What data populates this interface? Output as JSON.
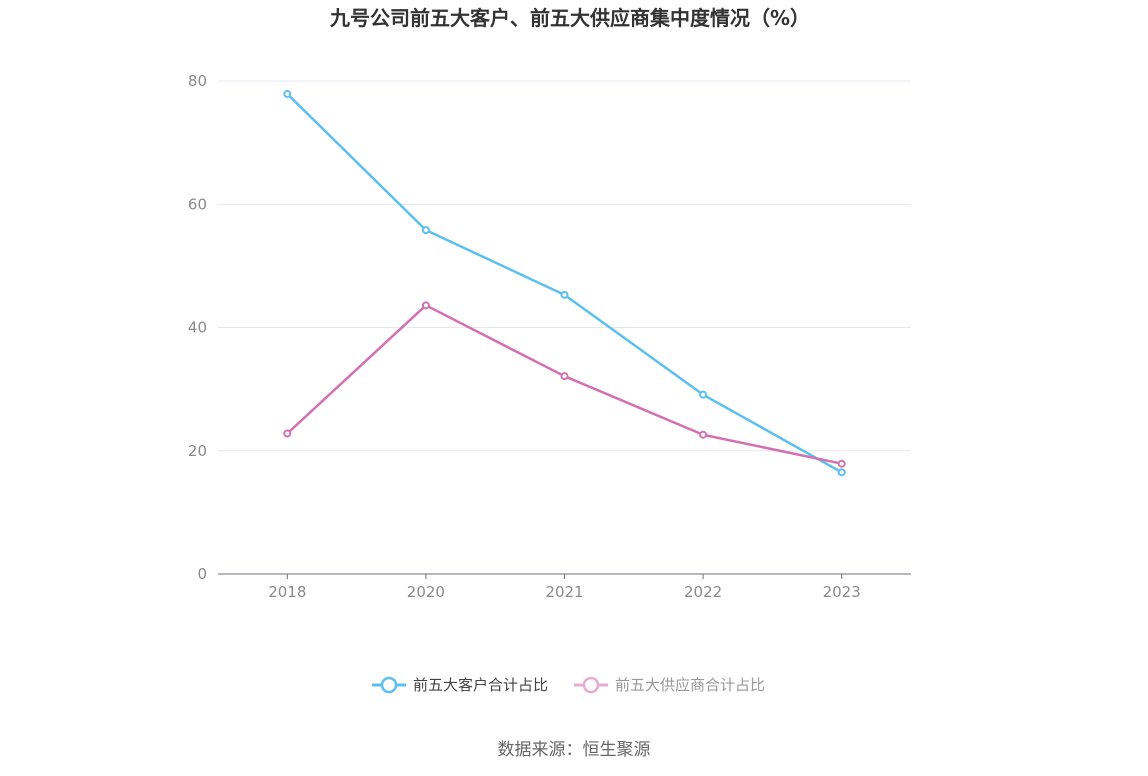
{
  "chart_data": {
    "type": "line",
    "title": "九号公司前五大客户、前五大供应商集中度情况（%）",
    "categories": [
      "2018",
      "2020",
      "2021",
      "2022",
      "2023"
    ],
    "y_ticks": [
      "0",
      "20",
      "40",
      "60",
      "80"
    ],
    "ylim": [
      0,
      80
    ],
    "grid": true,
    "legend_position": "bottom",
    "series": [
      {
        "name": "前五大客户合计占比",
        "color": "#5bc0f0",
        "values": [
          77.9,
          55.8,
          45.3,
          29.1,
          16.5
        ]
      },
      {
        "name": "前五大供应商合计占比",
        "color": "#d36fb2",
        "values": [
          22.8,
          43.6,
          32.1,
          22.6,
          17.9
        ]
      }
    ]
  },
  "legend_colors": [
    "#5bc0f0",
    "#e8a9d3"
  ],
  "legend_text_colors": [
    "#444444",
    "#999999"
  ],
  "source": "数据来源：恒生聚源"
}
